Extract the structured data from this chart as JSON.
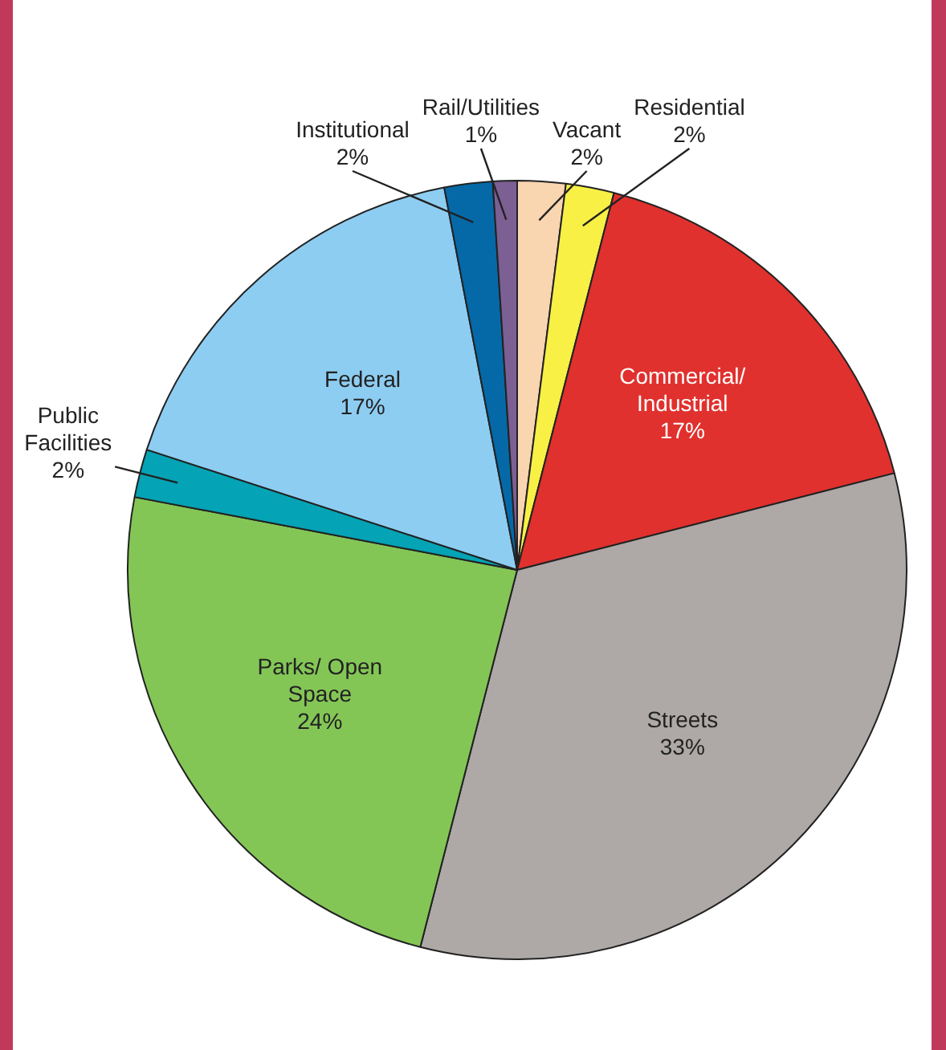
{
  "chart_data": {
    "type": "pie",
    "categories": [
      "Vacant",
      "Residential",
      "Commercial/ Industrial",
      "Streets",
      "Parks/ Open Space",
      "Public Facilities",
      "Federal",
      "Institutional",
      "Rail/Utilities"
    ],
    "values": [
      2,
      2,
      17,
      33,
      24,
      2,
      17,
      2,
      1
    ],
    "value_labels": [
      "2%",
      "2%",
      "17%",
      "33%",
      "24%",
      "2%",
      "17%",
      "2%",
      "1%"
    ],
    "colors": [
      "#f9d5b0",
      "#f8f045",
      "#e0312e",
      "#aea9a6",
      "#84c656",
      "#04a3b5",
      "#8ecdf2",
      "#0569a8",
      "#7c5f93"
    ],
    "legend": false
  }
}
